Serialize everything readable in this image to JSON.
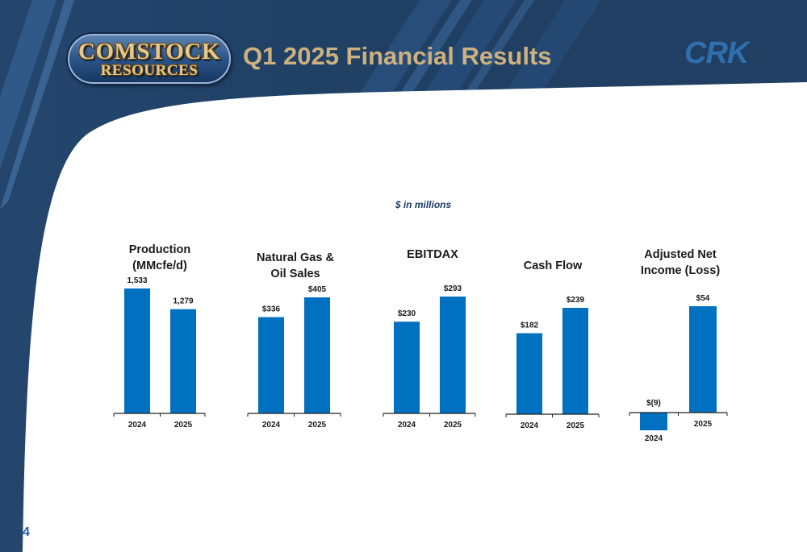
{
  "header": {
    "logo_line1": "COMSTOCK",
    "logo_line2": "RESOURCES",
    "title": "Q1 2025 Financial Results",
    "ticker": "CRK"
  },
  "subtitle": "$ in millions",
  "page_number": "4",
  "colors": {
    "bar": "#0070c0",
    "title_gold": "#cdb17e",
    "header_navy": "#1e3a5c",
    "ticker_blue": "#2f6fae"
  },
  "chart_data": [
    {
      "type": "bar",
      "title": "Production\n(MMcfe/d)",
      "categories": [
        "2024",
        "2025"
      ],
      "values": [
        1533,
        1279
      ],
      "value_labels": [
        "1,533",
        "1,279"
      ],
      "ylim": [
        0,
        1533
      ]
    },
    {
      "type": "bar",
      "title": "Natural Gas &\nOil Sales",
      "categories": [
        "2024",
        "2025"
      ],
      "values": [
        336,
        405
      ],
      "value_labels": [
        "$336",
        "$405"
      ],
      "ylim": [
        0,
        405
      ]
    },
    {
      "type": "bar",
      "title": "EBITDAX",
      "categories": [
        "2024",
        "2025"
      ],
      "values": [
        230,
        293
      ],
      "value_labels": [
        "$230",
        "$293"
      ],
      "ylim": [
        0,
        293
      ]
    },
    {
      "type": "bar",
      "title": "Cash Flow",
      "categories": [
        "2024",
        "2025"
      ],
      "values": [
        182,
        239
      ],
      "value_labels": [
        "$182",
        "$239"
      ],
      "ylim": [
        0,
        239
      ]
    },
    {
      "type": "bar",
      "title": "Adjusted Net\nIncome (Loss)",
      "categories": [
        "2024",
        "2025"
      ],
      "values": [
        -9,
        54
      ],
      "value_labels": [
        "$(9)",
        "$54"
      ],
      "ylim": [
        -9,
        54
      ]
    }
  ]
}
